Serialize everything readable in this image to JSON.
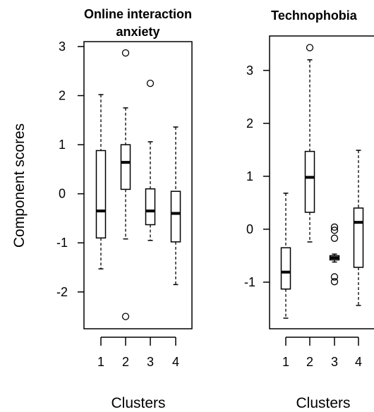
{
  "ylabel": "Component scores",
  "chart_data": [
    {
      "type": "box",
      "title_lines": [
        "Online interaction",
        "anxiety"
      ],
      "xlabel": "Clusters",
      "categories": [
        "1",
        "2",
        "3",
        "4"
      ],
      "y_ticks": [
        3,
        2,
        1,
        0,
        -1,
        -2
      ],
      "ylim": [
        -2.75,
        3.1
      ],
      "boxes": [
        {
          "label": "1",
          "whisker_low": -1.53,
          "q1": -0.9,
          "median": -0.35,
          "q3": 0.88,
          "whisker_high": 2.02,
          "outliers": []
        },
        {
          "label": "2",
          "whisker_low": -0.92,
          "q1": 0.09,
          "median": 0.64,
          "q3": 1.0,
          "whisker_high": 1.75,
          "outliers": [
            2.87,
            -2.5
          ]
        },
        {
          "label": "3",
          "whisker_low": -0.95,
          "q1": -0.63,
          "median": -0.35,
          "q3": 0.1,
          "whisker_high": 1.06,
          "outliers": [
            2.25
          ]
        },
        {
          "label": "4",
          "whisker_low": -1.85,
          "q1": -0.98,
          "median": -0.4,
          "q3": 0.05,
          "whisker_high": 1.36,
          "outliers": []
        }
      ]
    },
    {
      "type": "box",
      "title_lines": [
        "Technophobia"
      ],
      "xlabel": "Clusters",
      "categories": [
        "1",
        "2",
        "3",
        "4"
      ],
      "y_ticks": [
        3,
        2,
        1,
        0,
        -1
      ],
      "ylim": [
        -1.88,
        3.65
      ],
      "boxes": [
        {
          "label": "1",
          "whisker_low": -1.68,
          "q1": -1.13,
          "median": -0.81,
          "q3": -0.35,
          "whisker_high": 0.68,
          "outliers": []
        },
        {
          "label": "2",
          "whisker_low": -0.24,
          "q1": 0.32,
          "median": 0.98,
          "q3": 1.47,
          "whisker_high": 3.2,
          "outliers": [
            3.43
          ]
        },
        {
          "label": "3",
          "whisker_low": -0.62,
          "q1": -0.58,
          "median": -0.54,
          "q3": -0.5,
          "whisker_high": -0.47,
          "outliers": [
            0.04,
            -0.02,
            -0.17,
            -0.9,
            -0.99
          ]
        },
        {
          "label": "4",
          "whisker_low": -1.44,
          "q1": -0.72,
          "median": 0.13,
          "q3": 0.4,
          "whisker_high": 1.49,
          "outliers": []
        }
      ]
    }
  ]
}
